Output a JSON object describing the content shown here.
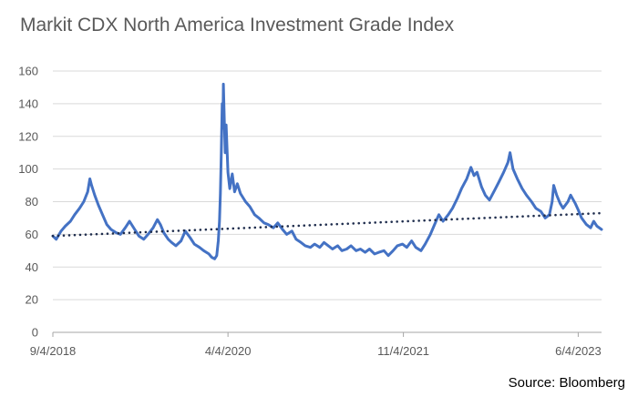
{
  "chart_data": {
    "type": "line",
    "title": "Markit CDX North America Investment Grade Index",
    "source": "Source: Bloomberg",
    "xlabel": "",
    "ylabel": "",
    "ylim": [
      0,
      160
    ],
    "yticks": [
      0,
      20,
      40,
      60,
      80,
      100,
      120,
      140,
      160
    ],
    "xlim": [
      "2018-09-04",
      "2023-08-20"
    ],
    "xticks": [
      {
        "date": "2018-09-04",
        "label": "9/4/2018"
      },
      {
        "date": "2020-04-04",
        "label": "4/4/2020"
      },
      {
        "date": "2021-11-04",
        "label": "11/4/2021"
      },
      {
        "date": "2023-06-04",
        "label": "6/4/2023"
      }
    ],
    "grid": "horizontal",
    "legend": "none",
    "colors": {
      "series": "#4472C4",
      "trend": "#1F2D4D",
      "grid": "#D9D9D9",
      "axis": "#A6A6A6"
    },
    "series": [
      {
        "style": "solid",
        "points": [
          [
            "2018-09-04",
            59
          ],
          [
            "2018-09-15",
            57
          ],
          [
            "2018-10-01",
            62
          ],
          [
            "2018-10-15",
            65
          ],
          [
            "2018-11-01",
            68
          ],
          [
            "2018-11-15",
            72
          ],
          [
            "2018-12-01",
            76
          ],
          [
            "2018-12-15",
            80
          ],
          [
            "2018-12-28",
            86
          ],
          [
            "2019-01-04",
            94
          ],
          [
            "2019-01-10",
            90
          ],
          [
            "2019-01-20",
            84
          ],
          [
            "2019-02-01",
            78
          ],
          [
            "2019-02-15",
            72
          ],
          [
            "2019-03-01",
            66
          ],
          [
            "2019-03-15",
            63
          ],
          [
            "2019-04-01",
            61
          ],
          [
            "2019-04-15",
            60
          ],
          [
            "2019-05-01",
            64
          ],
          [
            "2019-05-15",
            68
          ],
          [
            "2019-06-01",
            63
          ],
          [
            "2019-06-15",
            59
          ],
          [
            "2019-07-01",
            57
          ],
          [
            "2019-07-15",
            60
          ],
          [
            "2019-08-01",
            64
          ],
          [
            "2019-08-15",
            69
          ],
          [
            "2019-08-25",
            66
          ],
          [
            "2019-09-05",
            61
          ],
          [
            "2019-09-20",
            57
          ],
          [
            "2019-10-01",
            55
          ],
          [
            "2019-10-15",
            53
          ],
          [
            "2019-11-01",
            56
          ],
          [
            "2019-11-15",
            62
          ],
          [
            "2019-12-01",
            58
          ],
          [
            "2019-12-15",
            54
          ],
          [
            "2020-01-01",
            52
          ],
          [
            "2020-01-15",
            50
          ],
          [
            "2020-02-01",
            48
          ],
          [
            "2020-02-10",
            46
          ],
          [
            "2020-02-20",
            45
          ],
          [
            "2020-02-27",
            47
          ],
          [
            "2020-03-03",
            56
          ],
          [
            "2020-03-07",
            68
          ],
          [
            "2020-03-10",
            85
          ],
          [
            "2020-03-13",
            110
          ],
          [
            "2020-03-16",
            140
          ],
          [
            "2020-03-18",
            125
          ],
          [
            "2020-03-20",
            152
          ],
          [
            "2020-03-23",
            130
          ],
          [
            "2020-03-26",
            110
          ],
          [
            "2020-03-29",
            127
          ],
          [
            "2020-04-04",
            98
          ],
          [
            "2020-04-10",
            88
          ],
          [
            "2020-04-18",
            97
          ],
          [
            "2020-04-26",
            86
          ],
          [
            "2020-05-05",
            91
          ],
          [
            "2020-05-15",
            85
          ],
          [
            "2020-06-01",
            80
          ],
          [
            "2020-06-15",
            77
          ],
          [
            "2020-07-01",
            72
          ],
          [
            "2020-07-15",
            70
          ],
          [
            "2020-08-01",
            67
          ],
          [
            "2020-08-15",
            66
          ],
          [
            "2020-09-01",
            64
          ],
          [
            "2020-09-15",
            67
          ],
          [
            "2020-10-01",
            63
          ],
          [
            "2020-10-15",
            60
          ],
          [
            "2020-11-01",
            62
          ],
          [
            "2020-11-15",
            57
          ],
          [
            "2020-12-01",
            55
          ],
          [
            "2020-12-15",
            53
          ],
          [
            "2021-01-01",
            52
          ],
          [
            "2021-01-15",
            54
          ],
          [
            "2021-02-01",
            52
          ],
          [
            "2021-02-15",
            55
          ],
          [
            "2021-03-01",
            53
          ],
          [
            "2021-03-15",
            51
          ],
          [
            "2021-04-01",
            53
          ],
          [
            "2021-04-15",
            50
          ],
          [
            "2021-05-01",
            51
          ],
          [
            "2021-05-15",
            53
          ],
          [
            "2021-06-01",
            50
          ],
          [
            "2021-06-15",
            51
          ],
          [
            "2021-07-01",
            49
          ],
          [
            "2021-07-15",
            51
          ],
          [
            "2021-08-01",
            48
          ],
          [
            "2021-08-15",
            49
          ],
          [
            "2021-09-01",
            50
          ],
          [
            "2021-09-15",
            47
          ],
          [
            "2021-10-01",
            50
          ],
          [
            "2021-10-15",
            53
          ],
          [
            "2021-11-01",
            54
          ],
          [
            "2021-11-15",
            52
          ],
          [
            "2021-12-01",
            56
          ],
          [
            "2021-12-15",
            52
          ],
          [
            "2022-01-01",
            50
          ],
          [
            "2022-01-15",
            54
          ],
          [
            "2022-02-01",
            60
          ],
          [
            "2022-02-15",
            66
          ],
          [
            "2022-03-01",
            72
          ],
          [
            "2022-03-15",
            68
          ],
          [
            "2022-04-01",
            72
          ],
          [
            "2022-04-15",
            76
          ],
          [
            "2022-05-01",
            82
          ],
          [
            "2022-05-15",
            88
          ],
          [
            "2022-06-01",
            94
          ],
          [
            "2022-06-15",
            101
          ],
          [
            "2022-06-25",
            96
          ],
          [
            "2022-07-05",
            98
          ],
          [
            "2022-07-20",
            89
          ],
          [
            "2022-08-01",
            84
          ],
          [
            "2022-08-15",
            81
          ],
          [
            "2022-09-01",
            87
          ],
          [
            "2022-09-15",
            92
          ],
          [
            "2022-10-01",
            98
          ],
          [
            "2022-10-15",
            104
          ],
          [
            "2022-10-22",
            110
          ],
          [
            "2022-11-01",
            100
          ],
          [
            "2022-11-15",
            94
          ],
          [
            "2022-12-01",
            88
          ],
          [
            "2022-12-15",
            84
          ],
          [
            "2023-01-01",
            80
          ],
          [
            "2023-01-15",
            76
          ],
          [
            "2023-02-01",
            74
          ],
          [
            "2023-02-15",
            70
          ],
          [
            "2023-03-01",
            72
          ],
          [
            "2023-03-10",
            80
          ],
          [
            "2023-03-15",
            90
          ],
          [
            "2023-03-25",
            84
          ],
          [
            "2023-04-05",
            79
          ],
          [
            "2023-04-15",
            76
          ],
          [
            "2023-05-01",
            80
          ],
          [
            "2023-05-10",
            84
          ],
          [
            "2023-05-25",
            79
          ],
          [
            "2023-06-04",
            75
          ],
          [
            "2023-06-15",
            70
          ],
          [
            "2023-07-01",
            66
          ],
          [
            "2023-07-15",
            64
          ],
          [
            "2023-07-25",
            68
          ],
          [
            "2023-08-05",
            65
          ],
          [
            "2023-08-20",
            63
          ]
        ]
      },
      {
        "style": "dotted trendline",
        "points": [
          [
            "2018-09-04",
            59
          ],
          [
            "2023-08-20",
            73
          ]
        ]
      }
    ]
  }
}
